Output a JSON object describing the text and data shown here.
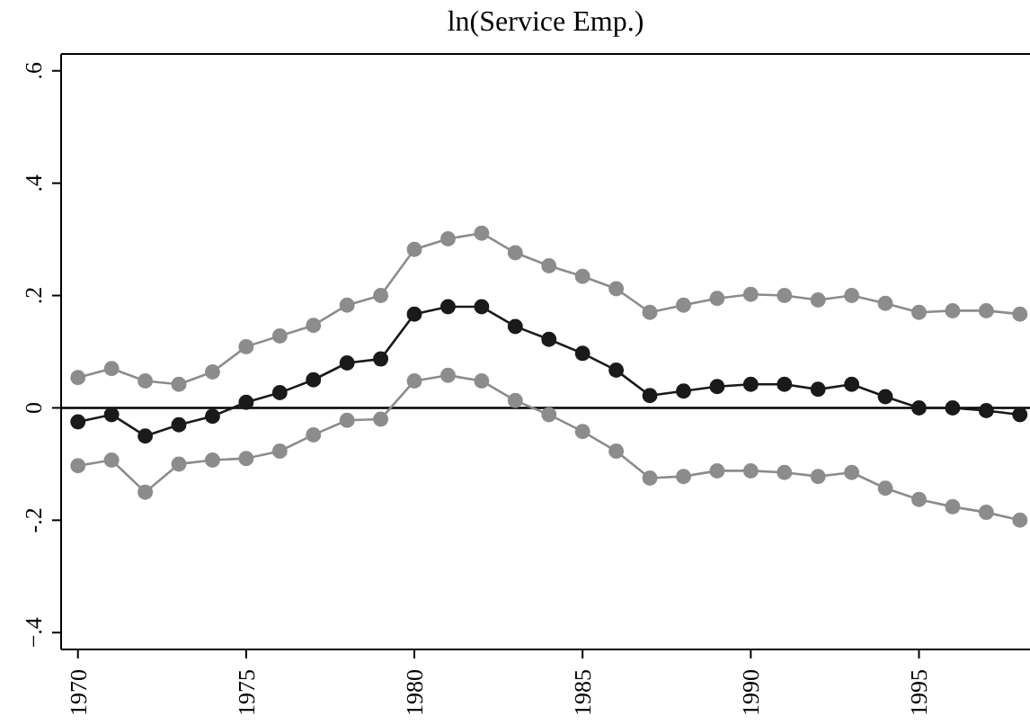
{
  "chart_data": {
    "type": "line",
    "title": "ln(Service Emp.)",
    "x": [
      1970,
      1971,
      1972,
      1973,
      1974,
      1975,
      1976,
      1977,
      1978,
      1979,
      1980,
      1981,
      1982,
      1983,
      1984,
      1985,
      1986,
      1987,
      1988,
      1989,
      1990,
      1991,
      1992,
      1993,
      1994,
      1995,
      1996,
      1997,
      1998
    ],
    "series": [
      {
        "color": "#8c8c8c",
        "values": [
          0.054,
          0.07,
          0.048,
          0.042,
          0.064,
          0.109,
          0.128,
          0.147,
          0.183,
          0.2,
          0.282,
          0.301,
          0.311,
          0.276,
          0.253,
          0.234,
          0.212,
          0.17,
          0.183,
          0.195,
          0.202,
          0.2,
          0.192,
          0.2,
          0.186,
          0.17,
          0.173,
          0.173,
          0.167
        ]
      },
      {
        "color": "#1a1a1a",
        "values": [
          -0.025,
          -0.012,
          -0.05,
          -0.03,
          -0.015,
          0.01,
          0.027,
          0.05,
          0.08,
          0.087,
          0.167,
          0.18,
          0.18,
          0.145,
          0.122,
          0.097,
          0.067,
          0.022,
          0.03,
          0.038,
          0.042,
          0.042,
          0.033,
          0.042,
          0.02,
          0,
          0,
          -0.005,
          -0.012
        ]
      },
      {
        "color": "#8c8c8c",
        "values": [
          -0.103,
          -0.093,
          -0.15,
          -0.1,
          -0.093,
          -0.09,
          -0.077,
          -0.048,
          -0.022,
          -0.02,
          0.048,
          0.058,
          0.048,
          0.013,
          -0.012,
          -0.042,
          -0.077,
          -0.125,
          -0.122,
          -0.112,
          -0.112,
          -0.115,
          -0.122,
          -0.115,
          -0.143,
          -0.163,
          -0.176,
          -0.186,
          -0.2
        ]
      }
    ],
    "xlim": [
      1969.5,
      1998.3
    ],
    "xticks": [
      1970,
      1975,
      1980,
      1985,
      1990,
      1995
    ],
    "ylim": [
      -0.43,
      0.63
    ],
    "yticks": [
      {
        "value": -0.4,
        "label": "−.4"
      },
      {
        "value": -0.2,
        "label": "-.2"
      },
      {
        "value": 0,
        "label": "0"
      },
      {
        "value": 0.2,
        "label": ".2"
      },
      {
        "value": 0.4,
        "label": ".4"
      },
      {
        "value": 0.6,
        "label": ".6"
      }
    ],
    "ref_lines": [
      {
        "axis": "y",
        "value": 0,
        "color": "#000000"
      }
    ],
    "grid": false,
    "legend": false,
    "marker": "circle",
    "line_style": "solid"
  }
}
